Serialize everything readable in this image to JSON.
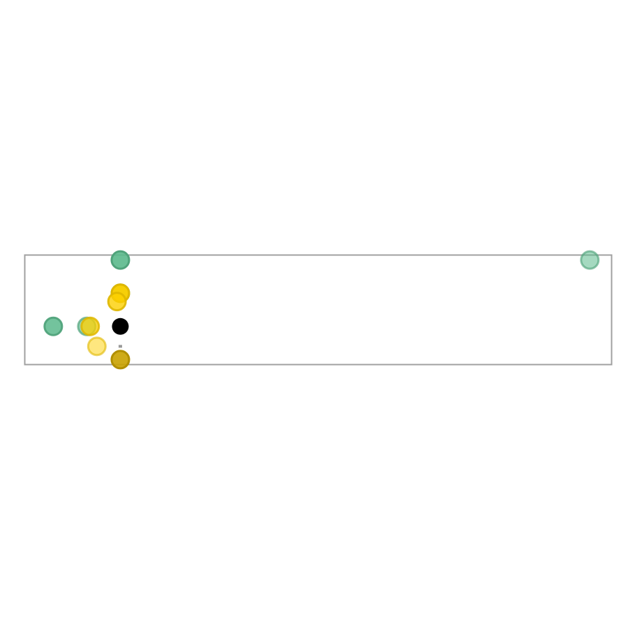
{
  "chart_data": {
    "type": "scatter",
    "title": "",
    "xlabel": "",
    "ylabel": "",
    "xlim": [
      -2.85,
      14.65
    ],
    "ylim": [
      -1.15,
      2.15
    ],
    "grid": false,
    "legend": "none",
    "colors": {
      "green": "#5bb98c",
      "yellow": "#fdd000",
      "dark_yellow": "#c9a200",
      "black": "#000000",
      "gray": "#999999",
      "frame": "#a0a0a0"
    },
    "series": [
      {
        "color": "green",
        "points": [
          {
            "x": 0,
            "y": 2,
            "opacity": 0.9
          },
          {
            "x": 0,
            "y": 1,
            "opacity": 0.85
          },
          {
            "x": -2,
            "y": 0,
            "opacity": 0.85
          },
          {
            "x": -1,
            "y": 0,
            "opacity": 0.6
          },
          {
            "x": 14,
            "y": 2,
            "opacity": 0.55
          }
        ]
      },
      {
        "color": "yellow",
        "points": [
          {
            "x": 0,
            "y": 1,
            "opacity": 0.95
          },
          {
            "x": -0.1,
            "y": 0.75,
            "opacity": 0.8
          },
          {
            "x": -0.9,
            "y": 0,
            "opacity": 0.75
          },
          {
            "x": -0.7,
            "y": -0.6,
            "opacity": 0.5
          }
        ]
      },
      {
        "color": "dark_yellow",
        "points": [
          {
            "x": 0,
            "y": -1,
            "opacity": 0.9
          }
        ]
      },
      {
        "color": "black",
        "points": [
          {
            "x": 0,
            "y": 0,
            "opacity": 1
          }
        ]
      },
      {
        "color": "gray",
        "marker": "small-square",
        "points": [
          {
            "x": 0,
            "y": -0.6,
            "opacity": 1
          }
        ]
      }
    ]
  }
}
